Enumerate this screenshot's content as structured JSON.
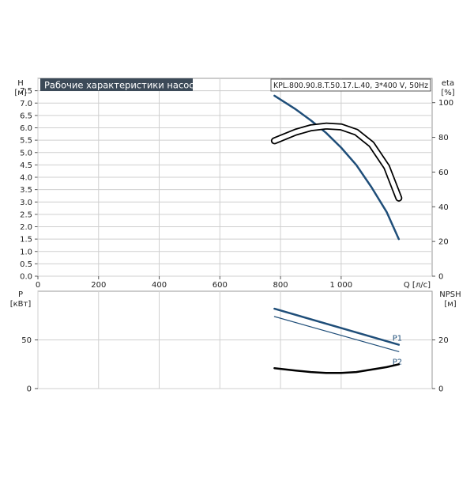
{
  "chart_data": [
    {
      "type": "line",
      "title": "Рабочие характеристики насоса",
      "subtitle": "KPL.800.90.8.T.50.17.L.40, 3*400 V, 50Hz",
      "xlabel": "Q [л/с]",
      "xlim": [
        0,
        1300
      ],
      "x_ticks": [
        0,
        200,
        400,
        600,
        800,
        1000
      ],
      "x_tick_labels": [
        "0",
        "200",
        "400",
        "600",
        "800",
        "1 000"
      ],
      "left_axis": {
        "label_top": "H",
        "label_unit": "[м]",
        "ylim": [
          0,
          8
        ],
        "ticks": [
          0,
          0.5,
          1,
          1.5,
          2,
          2.5,
          3,
          3.5,
          4,
          4.5,
          5,
          5.5,
          6,
          6.5,
          7,
          7.5
        ],
        "tick_labels": [
          "0.0",
          "0.5",
          "1.0",
          "1.5",
          "2.0",
          "2.5",
          "3.0",
          "3.5",
          "4.0",
          "4.5",
          "5.0",
          "5.5",
          "6.0",
          "6.5",
          "7.0",
          "7.5"
        ]
      },
      "right_axis": {
        "label_top": "eta",
        "label_unit": "[%]",
        "ylim": [
          0,
          114
        ],
        "ticks": [
          0,
          20,
          40,
          60,
          80,
          100
        ],
        "tick_labels": [
          "0",
          "20",
          "40",
          "60",
          "80",
          "100"
        ]
      },
      "grid": true,
      "series": [
        {
          "axis": "left",
          "color": "#1f4e79",
          "x": [
            780,
            850,
            900,
            950,
            1000,
            1050,
            1100,
            1150,
            1190
          ],
          "y": [
            7.3,
            6.75,
            6.3,
            5.8,
            5.2,
            4.5,
            3.6,
            2.6,
            1.5
          ]
        },
        {
          "axis": "right",
          "color": "#000000",
          "style": "double",
          "x": [
            780,
            850,
            900,
            950,
            1000,
            1050,
            1100,
            1150,
            1190
          ],
          "y": [
            78,
            83,
            85.5,
            86.5,
            86,
            83,
            76,
            63,
            45
          ]
        }
      ]
    },
    {
      "type": "line",
      "xlim": [
        0,
        1300
      ],
      "x_ticks": [
        0,
        200,
        400,
        600,
        800,
        1000
      ],
      "left_axis": {
        "label_top": "P",
        "label_unit": "[кВт]",
        "ylim": [
          0,
          100
        ],
        "ticks": [
          0,
          50
        ],
        "tick_labels": [
          "0",
          "50"
        ]
      },
      "right_axis": {
        "label_top": "NPSH",
        "label_unit": "[м]",
        "ylim": [
          0,
          40
        ],
        "ticks": [
          0,
          20
        ],
        "tick_labels": [
          "0",
          "20"
        ]
      },
      "grid": true,
      "series": [
        {
          "name": "P1",
          "axis": "left",
          "color": "#1f4e79",
          "width": 2.5,
          "x": [
            780,
            1190
          ],
          "y": [
            82,
            45
          ]
        },
        {
          "name": "P2",
          "axis": "left",
          "color": "#1f4e79",
          "width": 1.2,
          "x": [
            780,
            1190
          ],
          "y": [
            74,
            38
          ]
        },
        {
          "axis": "right",
          "color": "#000000",
          "width": 2.5,
          "x": [
            780,
            850,
            900,
            950,
            1000,
            1050,
            1100,
            1150,
            1190
          ],
          "y": [
            8.4,
            7.4,
            6.8,
            6.4,
            6.4,
            6.8,
            7.8,
            8.8,
            10
          ]
        }
      ]
    }
  ]
}
